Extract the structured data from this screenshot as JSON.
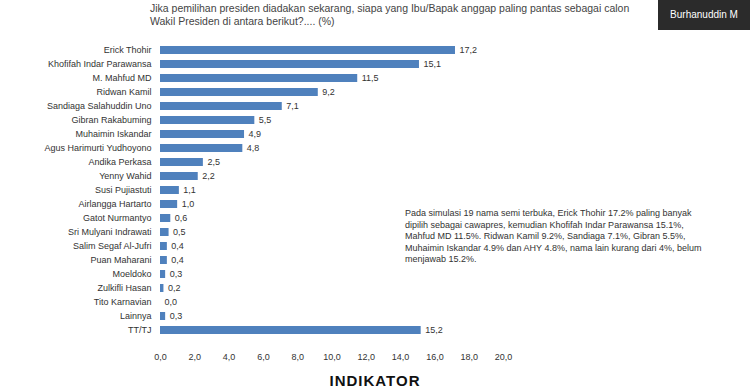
{
  "chart_data": {
    "type": "bar",
    "orientation": "horizontal",
    "title": "Jika pemilihan presiden diadakan sekarang, siapa yang Ibu/Bapak anggap paling pantas sebagai calon Wakil Presiden di antara berikut?.... (%)",
    "categories": [
      "Erick Thohir",
      "Khofifah Indar Parawansa",
      "M. Mahfud MD",
      "Ridwan Kamil",
      "Sandiaga Salahuddin Uno",
      "Gibran Rakabuming",
      "Muhaimin Iskandar",
      "Agus Harimurti Yudhoyono",
      "Andika Perkasa",
      "Yenny Wahid",
      "Susi Pujiastuti",
      "Airlangga Hartarto",
      "Gatot Nurmantyo",
      "Sri Mulyani Indrawati",
      "Salim Segaf Al-Jufri",
      "Puan Maharani",
      "Moeldoko",
      "Zulkifli Hasan",
      "Tito Karnavian",
      "Lainnya",
      "TT/TJ"
    ],
    "values": [
      17.2,
      15.1,
      11.5,
      9.2,
      7.1,
      5.5,
      4.9,
      4.8,
      2.5,
      2.2,
      1.1,
      1.0,
      0.6,
      0.5,
      0.4,
      0.4,
      0.3,
      0.2,
      0.0,
      0.3,
      15.2
    ],
    "value_labels": [
      "17,2",
      "15,1",
      "11,5",
      "9,2",
      "7,1",
      "5,5",
      "4,9",
      "4,8",
      "2,5",
      "2,2",
      "1,1",
      "1,0",
      "0,6",
      "0,5",
      "0,4",
      "0,4",
      "0,3",
      "0,2",
      "0,0",
      "0,3",
      "15,2"
    ],
    "color": "#4f81bd",
    "xlim": [
      0,
      20
    ],
    "xticks": [
      {
        "value": 0,
        "label": "0,0"
      },
      {
        "value": 2,
        "label": "2,0"
      },
      {
        "value": 4,
        "label": "4,0"
      },
      {
        "value": 6,
        "label": "6,0"
      },
      {
        "value": 8,
        "label": "8,0"
      },
      {
        "value": 10,
        "label": "10,0"
      },
      {
        "value": 12,
        "label": "12,0"
      },
      {
        "value": 14,
        "label": "14,0"
      },
      {
        "value": 16,
        "label": "16,0"
      },
      {
        "value": 18,
        "label": "18,0"
      },
      {
        "value": 20,
        "label": "20,0"
      }
    ],
    "grid": false,
    "data_labels": true,
    "annotations": [
      "Pada simulasi 19 nama semi terbuka, Erick Thohir 17.2% paling banyak dipilih sebagai cawapres, kemudian Khofifah Indar Parawansa 15.1%, Mahfud MD 11.5%. Ridwan Kamil 9.2%, Sandiaga 7.1%, Gibran 5.5%, Muhaimin Iskandar 4.9% dan AHY 4.8%, nama lain kurang dari 4%, belum menjawab 15.2%."
    ],
    "speaker": "Burhanuddin M",
    "logo": "INDIKATOR"
  }
}
